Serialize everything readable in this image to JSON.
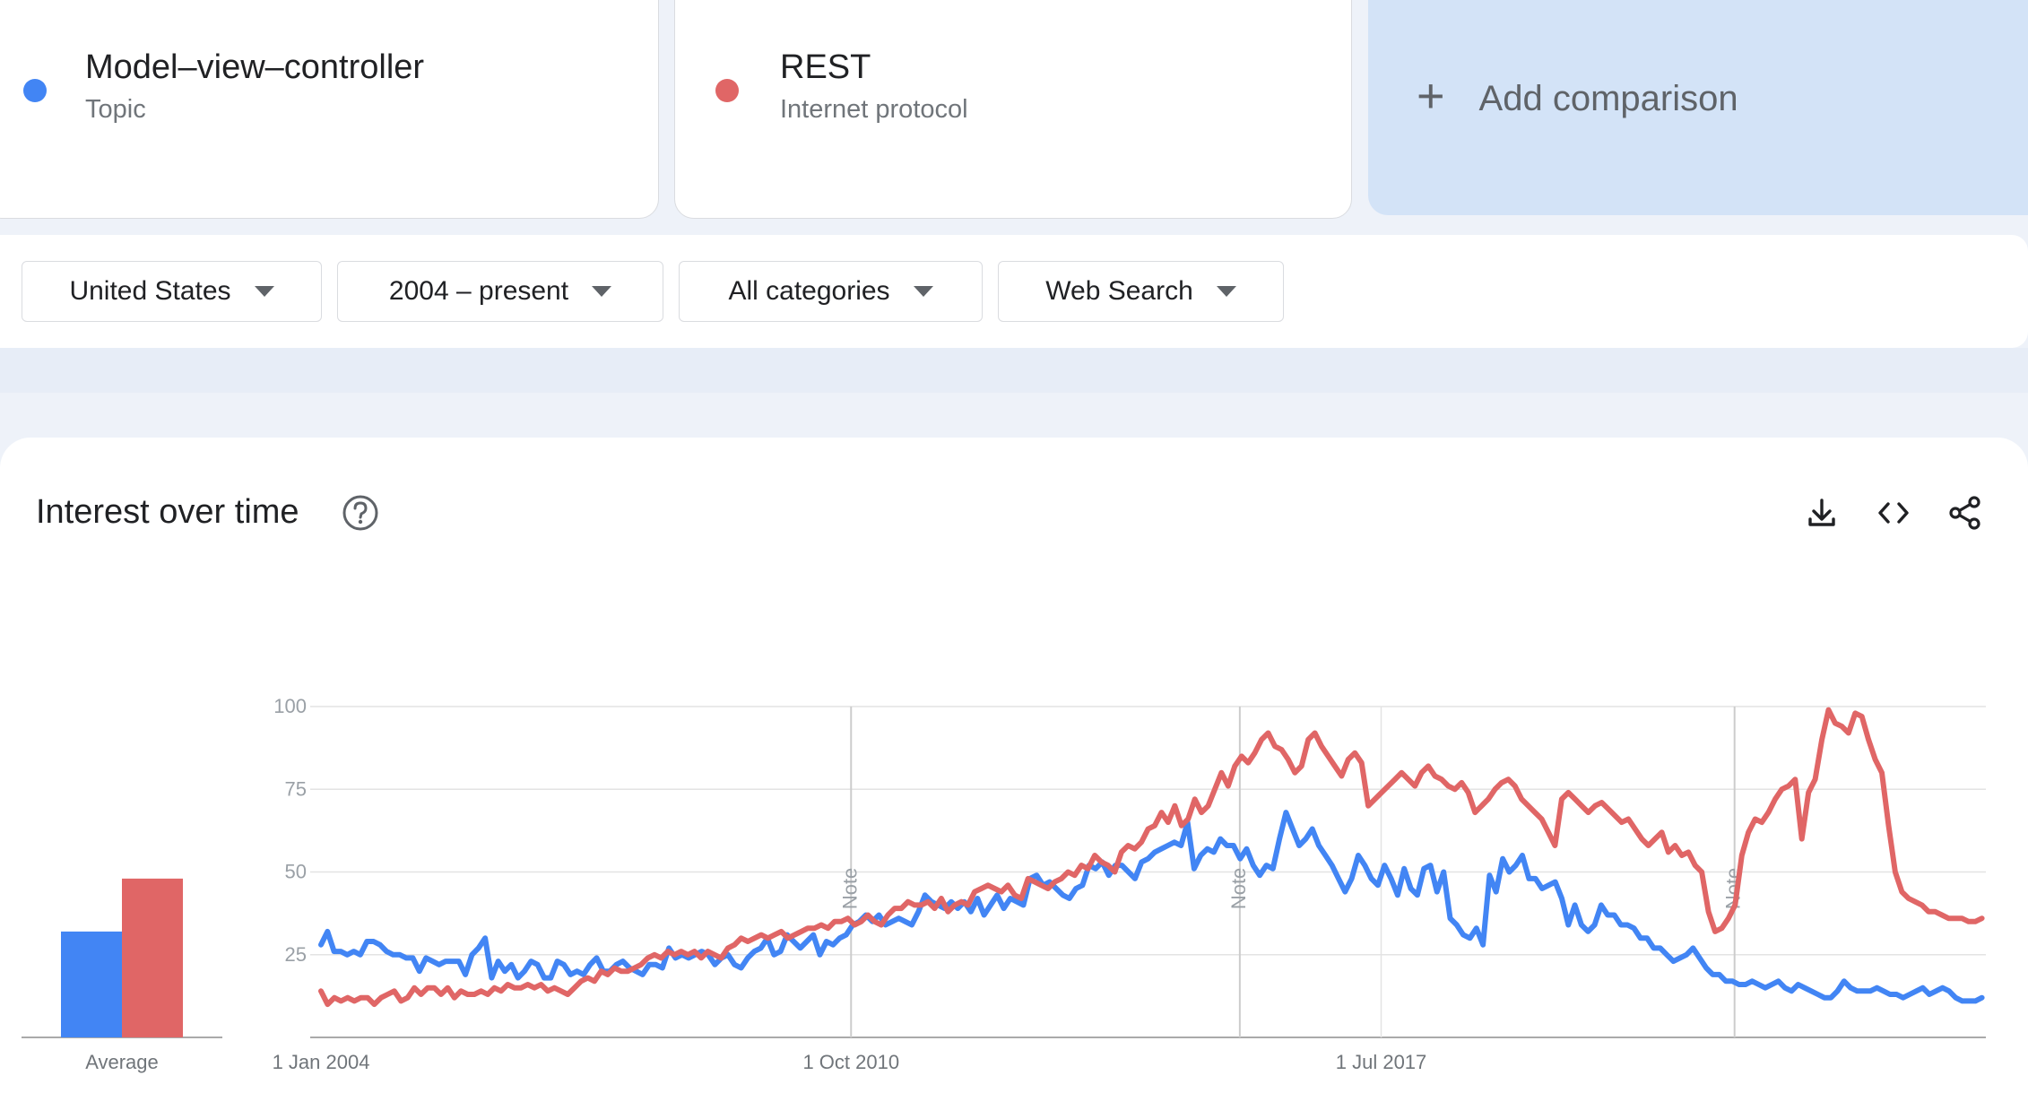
{
  "terms": [
    {
      "name": "Model–view–controller",
      "type": "Topic",
      "color": "#4285f4"
    },
    {
      "name": "REST",
      "type": "Internet protocol",
      "color": "#e06666"
    }
  ],
  "add_comparison": {
    "icon": "plus-icon",
    "label": "Add comparison"
  },
  "filters": [
    {
      "label": "United States",
      "icon": "caret-down-icon"
    },
    {
      "label": "2004 – present",
      "icon": "caret-down-icon"
    },
    {
      "label": "All categories",
      "icon": "caret-down-icon"
    },
    {
      "label": "Web Search",
      "icon": "caret-down-icon"
    }
  ],
  "panel": {
    "title": "Interest over time",
    "icons": [
      "help-icon",
      "download-icon",
      "embed-code-icon",
      "share-icon"
    ]
  },
  "chart_data": {
    "type": "line",
    "x_tick_labels": [
      "1 Jan 2004",
      "1 Oct 2010",
      "1 Jul 2017"
    ],
    "y_ticks": [
      25,
      50,
      75,
      100
    ],
    "ylim": [
      0,
      100
    ],
    "grid": true,
    "note_label": "Note",
    "note_positions_year": [
      2010.75,
      2015.7,
      2022.0
    ],
    "average": {
      "label": "Average",
      "values": [
        32,
        48
      ]
    },
    "series": [
      {
        "color": "#4285f4",
        "values": [
          28,
          32,
          26,
          26,
          25,
          26,
          25,
          29,
          29,
          28,
          26,
          25,
          25,
          24,
          24,
          20,
          24,
          23,
          22,
          23,
          23,
          23,
          19,
          25,
          27,
          30,
          18,
          23,
          20,
          22,
          18,
          20,
          23,
          22,
          18,
          18,
          23,
          22,
          19,
          20,
          19,
          22,
          24,
          20,
          20,
          22,
          23,
          21,
          20,
          19,
          22,
          22,
          21,
          27,
          24,
          25,
          24,
          25,
          26,
          25,
          22,
          24,
          25,
          22,
          21,
          24,
          26,
          27,
          30,
          25,
          26,
          31,
          29,
          27,
          29,
          31,
          25,
          29,
          28,
          30,
          31,
          34,
          35,
          37,
          35,
          37,
          34,
          35,
          36,
          35,
          34,
          38,
          43,
          41,
          40,
          39,
          41,
          39,
          41,
          38,
          42,
          37,
          40,
          43,
          39,
          42,
          41,
          40,
          48,
          49,
          46,
          47,
          45,
          43,
          42,
          45,
          46,
          52,
          51,
          53,
          49,
          52,
          52,
          50,
          48,
          53,
          54,
          56,
          57,
          58,
          59,
          58,
          65,
          51,
          55,
          57,
          56,
          60,
          58,
          58,
          54,
          57,
          52,
          49,
          52,
          51,
          60,
          68,
          63,
          58,
          60,
          63,
          58,
          55,
          52,
          48,
          44,
          48,
          55,
          52,
          48,
          46,
          52,
          48,
          43,
          51,
          45,
          43,
          51,
          52,
          44,
          50,
          36,
          34,
          31,
          30,
          33,
          28,
          49,
          44,
          54,
          50,
          52,
          55,
          48,
          48,
          45,
          46,
          47,
          42,
          34,
          40,
          34,
          32,
          34,
          40,
          37,
          37,
          34,
          34,
          33,
          30,
          30,
          27,
          27,
          25,
          23,
          24,
          25,
          27,
          24,
          21,
          19,
          19,
          17,
          17,
          16,
          16,
          17,
          16,
          15,
          16,
          17,
          15,
          14,
          16,
          15,
          14,
          13,
          12,
          12,
          14,
          17,
          15,
          14,
          14,
          14,
          15,
          14,
          13,
          13,
          12,
          13,
          14,
          15,
          13,
          14,
          15,
          14,
          12,
          11,
          11,
          11,
          12
        ]
      },
      {
        "color": "#e06666",
        "values": [
          14,
          10,
          12,
          11,
          12,
          11,
          12,
          12,
          10,
          12,
          13,
          14,
          11,
          12,
          15,
          13,
          15,
          15,
          13,
          15,
          12,
          14,
          13,
          13,
          14,
          13,
          15,
          14,
          16,
          15,
          15,
          16,
          15,
          16,
          14,
          15,
          14,
          13,
          15,
          17,
          18,
          17,
          20,
          19,
          21,
          20,
          20,
          21,
          22,
          24,
          25,
          24,
          26,
          25,
          26,
          25,
          26,
          24,
          26,
          25,
          24,
          27,
          28,
          30,
          29,
          30,
          31,
          30,
          31,
          32,
          30,
          31,
          32,
          33,
          33,
          34,
          33,
          35,
          35,
          36,
          34,
          35,
          37,
          35,
          34,
          37,
          39,
          39,
          41,
          40,
          40,
          41,
          39,
          42,
          38,
          40,
          41,
          40,
          44,
          45,
          46,
          45,
          44,
          46,
          43,
          42,
          48,
          47,
          46,
          45,
          47,
          48,
          50,
          49,
          52,
          51,
          55,
          53,
          52,
          50,
          56,
          58,
          57,
          59,
          63,
          64,
          68,
          65,
          70,
          64,
          66,
          72,
          68,
          70,
          75,
          80,
          76,
          82,
          85,
          83,
          86,
          90,
          92,
          88,
          87,
          84,
          80,
          82,
          90,
          92,
          88,
          85,
          82,
          79,
          84,
          86,
          83,
          70,
          72,
          74,
          76,
          78,
          80,
          78,
          76,
          80,
          82,
          79,
          78,
          76,
          75,
          77,
          74,
          68,
          70,
          72,
          75,
          77,
          78,
          76,
          72,
          70,
          68,
          66,
          62,
          58,
          72,
          74,
          72,
          70,
          68,
          70,
          71,
          69,
          67,
          65,
          66,
          63,
          60,
          58,
          60,
          62,
          56,
          58,
          55,
          56,
          52,
          50,
          38,
          32,
          33,
          36,
          40,
          55,
          62,
          66,
          65,
          68,
          72,
          75,
          76,
          78,
          60,
          74,
          78,
          90,
          99,
          95,
          94,
          92,
          98,
          97,
          90,
          84,
          80,
          64,
          50,
          44,
          42,
          41,
          40,
          38,
          38,
          37,
          36,
          36,
          36,
          35,
          35,
          36
        ]
      }
    ]
  }
}
